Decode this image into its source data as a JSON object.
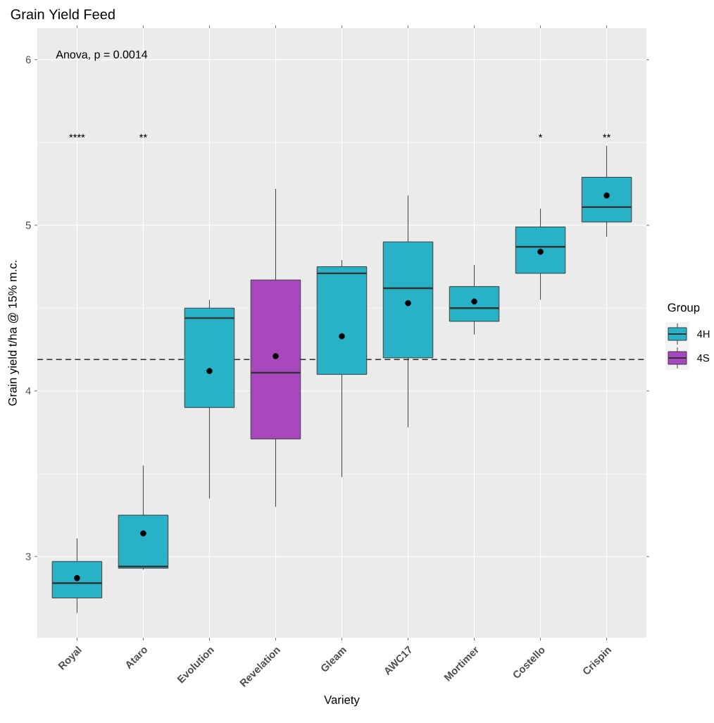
{
  "chart_data": {
    "type": "box",
    "title": "Grain Yield Feed",
    "xlabel": "Variety",
    "ylabel": "Grain yield t/ha @ 15% m.c.",
    "legend_title": "Group",
    "categories": [
      "Royal",
      "Ataro",
      "Evolution",
      "Revelation",
      "Gleam",
      "AWC17",
      "Mortimer",
      "Costello",
      "Crispin"
    ],
    "series": [
      {
        "name": "4H",
        "color": "#27b2c7",
        "boxes": [
          {
            "low": 2.66,
            "q1": 2.75,
            "median": 2.84,
            "q3": 2.97,
            "high": 3.11,
            "mean": 2.87
          },
          {
            "low": 2.92,
            "q1": 2.93,
            "median": 2.94,
            "q3": 3.25,
            "high": 3.55,
            "mean": 3.14
          },
          {
            "low": 3.35,
            "q1": 3.9,
            "median": 4.44,
            "q3": 4.5,
            "high": 4.55,
            "mean": 4.12
          },
          null,
          {
            "low": 3.48,
            "q1": 4.1,
            "median": 4.71,
            "q3": 4.75,
            "high": 4.79,
            "mean": 4.33
          },
          {
            "low": 3.78,
            "q1": 4.2,
            "median": 4.62,
            "q3": 4.9,
            "high": 5.18,
            "mean": 4.53
          },
          {
            "low": 4.34,
            "q1": 4.42,
            "median": 4.5,
            "q3": 4.63,
            "high": 4.76,
            "mean": 4.54
          },
          {
            "low": 4.55,
            "q1": 4.71,
            "median": 4.87,
            "q3": 4.99,
            "high": 5.1,
            "mean": 4.84
          },
          {
            "low": 4.93,
            "q1": 5.02,
            "median": 5.11,
            "q3": 5.29,
            "high": 5.48,
            "mean": 5.18
          }
        ]
      },
      {
        "name": "4S",
        "color": "#a746bd",
        "boxes": [
          null,
          null,
          null,
          {
            "low": 3.3,
            "q1": 3.71,
            "median": 4.11,
            "q3": 4.67,
            "high": 5.22,
            "mean": 4.21
          },
          null,
          null,
          null,
          null,
          null
        ]
      }
    ],
    "ylim": [
      2.51,
      6.19
    ],
    "yticks": [
      3,
      4,
      5,
      6
    ],
    "grid": true,
    "legend": "right",
    "ref_lines": [
      {
        "axis": "y",
        "value": 4.19,
        "line_style": "dashed",
        "color": "#000000"
      }
    ],
    "annotations": [
      "Anova, p = 0.0014",
      "****",
      "**",
      "*",
      "**"
    ]
  }
}
